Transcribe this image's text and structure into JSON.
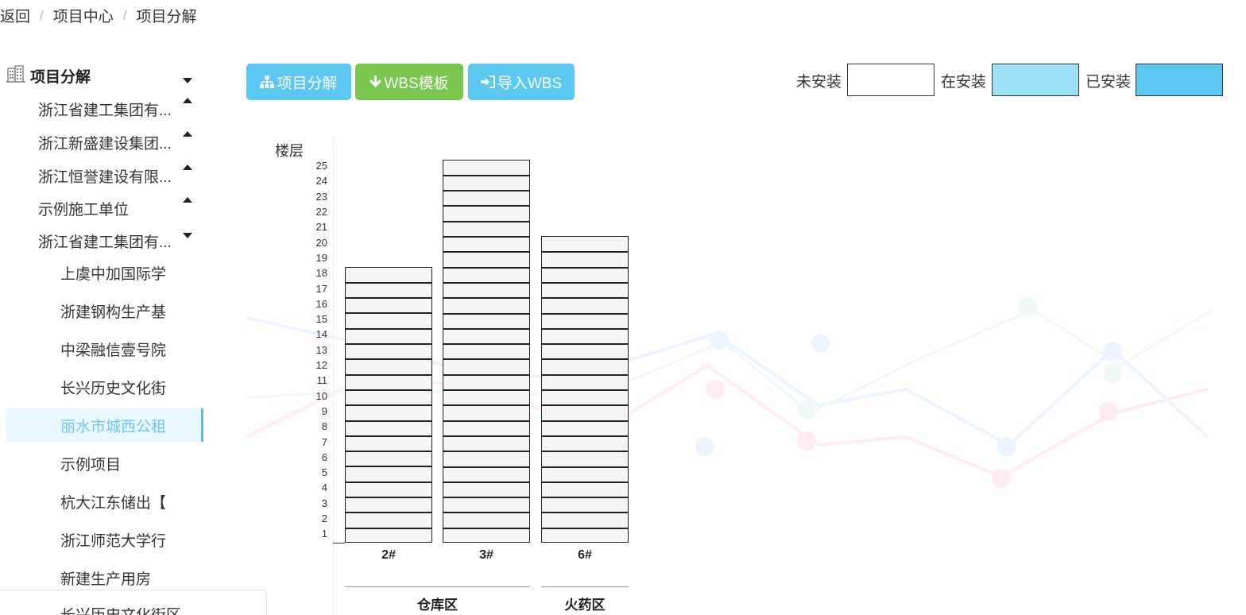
{
  "breadcrumb": {
    "back": "返回",
    "items": [
      "项目中心",
      "项目分解"
    ],
    "separator": "/"
  },
  "sidebar": {
    "root": {
      "label": "项目分解",
      "icon": "building-icon"
    },
    "items": [
      {
        "label": "浙江省建工集团有...",
        "level": 1,
        "caret": "up"
      },
      {
        "label": "浙江新盛建设集团...",
        "level": 1,
        "caret": "up"
      },
      {
        "label": "浙江恒誉建设有限...",
        "level": 1,
        "caret": "up"
      },
      {
        "label": "示例施工单位",
        "level": 1,
        "caret": "up"
      },
      {
        "label": "浙江省建工集团有...",
        "level": 1,
        "caret": "down"
      },
      {
        "label": "上虞中加国际学",
        "level": 2
      },
      {
        "label": "浙建钢构生产基",
        "level": 2
      },
      {
        "label": "中梁融信壹号院",
        "level": 2
      },
      {
        "label": "长兴历史文化街",
        "level": 2
      },
      {
        "label": "丽水市城西公租",
        "level": 2,
        "active": true
      },
      {
        "label": "示例项目",
        "level": 2
      },
      {
        "label": "杭大江东储出【",
        "level": 2
      },
      {
        "label": "浙江师范大学行",
        "level": 2
      },
      {
        "label": "新建生产用房",
        "level": 2
      }
    ],
    "cut_off_item": "长兴历史文化街区"
  },
  "toolbar": {
    "decompose_label": "项目分解",
    "wbs_template_label": "WBS模板",
    "import_wbs_label": "导入WBS"
  },
  "legend": {
    "not_installed": {
      "label": "未安装",
      "color": "#ffffff"
    },
    "installing": {
      "label": "在安装",
      "color": "#9be0f4"
    },
    "installed": {
      "label": "已安装",
      "color": "#5bc8f2"
    }
  },
  "chart_data": {
    "type": "bar",
    "ylabel": "楼层",
    "y_ticks": [
      1,
      2,
      3,
      4,
      5,
      6,
      7,
      8,
      9,
      10,
      11,
      12,
      13,
      14,
      15,
      16,
      17,
      18,
      19,
      20,
      21,
      22,
      23,
      24,
      25
    ],
    "categories": [
      "2#",
      "3#",
      "6#"
    ],
    "values": [
      18,
      25,
      20
    ],
    "zones": [
      {
        "name": "仓库区",
        "buildings": [
          "2#",
          "3#"
        ]
      },
      {
        "name": "火药区",
        "buildings": [
          "6#"
        ]
      }
    ],
    "status": "未安装"
  }
}
